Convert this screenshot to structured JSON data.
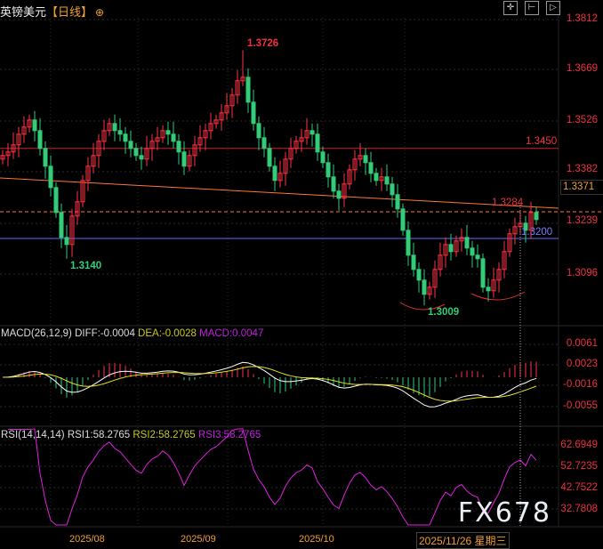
{
  "header": {
    "symbol": "英镑美元",
    "timeframe": "【日线】",
    "icon": "crosshair-circle-icon",
    "toolbar": [
      "crosshair-icon",
      "fit-left-icon",
      "play-icon",
      "fit-right-icon"
    ]
  },
  "price_axis": [
    "1.3812",
    "1.3669",
    "1.3526",
    "1.3382",
    "1.3239",
    "1.3096"
  ],
  "current_price": "1.3371",
  "levels": {
    "resistance": "1.3450",
    "support": "1.3200",
    "dashed": "1.3284",
    "peak": "1.3726",
    "low1": "1.3140",
    "low2": "1.3009"
  },
  "colors": {
    "up": "#ff3344",
    "down": "#33cc77",
    "resistance": "#cc2222",
    "support": "#6666ff",
    "trend": "#ff7733",
    "diff": "#ffffff",
    "dea": "#e8e020",
    "rsi": "#e020e0"
  },
  "chart_data": {
    "type": "candlestick",
    "closes": [
      1.343,
      1.344,
      1.346,
      1.349,
      1.351,
      1.353,
      1.35,
      1.345,
      1.34,
      1.334,
      1.327,
      1.32,
      1.318,
      1.326,
      1.33,
      1.336,
      1.34,
      1.343,
      1.347,
      1.35,
      1.352,
      1.35,
      1.349,
      1.347,
      1.345,
      1.343,
      1.342,
      1.345,
      1.347,
      1.348,
      1.35,
      1.349,
      1.347,
      1.344,
      1.34,
      1.343,
      1.346,
      1.348,
      1.35,
      1.352,
      1.353,
      1.355,
      1.357,
      1.36,
      1.364,
      1.365,
      1.358,
      1.352,
      1.348,
      1.345,
      1.34,
      1.336,
      1.338,
      1.342,
      1.345,
      1.347,
      1.348,
      1.35,
      1.349,
      1.344,
      1.341,
      1.337,
      1.333,
      1.331,
      1.335,
      1.339,
      1.342,
      1.343,
      1.341,
      1.338,
      1.336,
      1.337,
      1.335,
      1.332,
      1.328,
      1.322,
      1.315,
      1.311,
      1.308,
      1.304,
      1.306,
      1.311,
      1.315,
      1.318,
      1.316,
      1.319,
      1.32,
      1.317,
      1.315,
      1.314,
      1.306,
      1.305,
      1.308,
      1.311,
      1.316,
      1.321,
      1.323,
      1.324,
      1.322,
      1.327,
      1.325
    ],
    "x_labels": [
      "2025/08",
      "2025/09",
      "2025/10"
    ],
    "cursor_date": "2025/11/26 星期三"
  },
  "macd": {
    "label": "MACD(26,12,9)",
    "diff": "DIFF:-0.0004",
    "dea": "DEA:-0.0028",
    "macd": "MACD:0.0047",
    "axis": [
      "0.0061",
      "0.0023",
      "-0.0016",
      "-0.0055"
    ]
  },
  "rsi": {
    "label": "RSI(14,14,14)",
    "rsi1": "RSI1:58.2765",
    "rsi2": "RSI2:58.2765",
    "rsi3": "RSI3:58.2765",
    "axis": [
      "62.6949",
      "52.7235",
      "42.7522",
      "32.7808"
    ]
  },
  "watermark": "FX678"
}
